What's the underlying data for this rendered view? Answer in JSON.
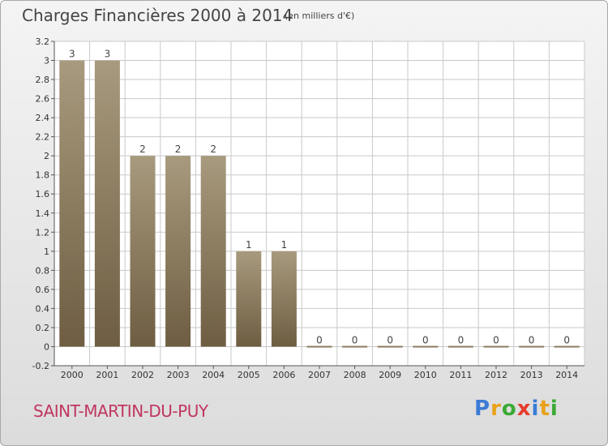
{
  "title": "Charges Financières 2000 à 2014",
  "subtitle": "(en milliers d'€)",
  "place": "SAINT-MARTIN-DU-PUY",
  "logo": {
    "text": "Proxiti",
    "letters": [
      {
        "ch": "P",
        "color": "#3a7bd5"
      },
      {
        "ch": "r",
        "color": "#e8a21a"
      },
      {
        "ch": "o",
        "color": "#3aaa35"
      },
      {
        "ch": "x",
        "color": "#e63c2e"
      },
      {
        "ch": "i",
        "color": "#3a7bd5"
      },
      {
        "ch": "t",
        "color": "#e8a21a"
      },
      {
        "ch": "i",
        "color": "#3aaa35"
      }
    ]
  },
  "colors": {
    "bar_top": "#a89a7e",
    "bar_bottom": "#6e5d42",
    "grid": "#c9c9c9",
    "axis": "#555555"
  },
  "chart_data": {
    "type": "bar",
    "categories": [
      "2000",
      "2001",
      "2002",
      "2003",
      "2004",
      "2005",
      "2006",
      "2007",
      "2008",
      "2009",
      "2010",
      "2011",
      "2012",
      "2013",
      "2014"
    ],
    "values": [
      3,
      3,
      2,
      2,
      2,
      1,
      1,
      0,
      0,
      0,
      0,
      0,
      0,
      0,
      0
    ],
    "data_labels": [
      "3",
      "3",
      "2",
      "2",
      "2",
      "1",
      "1",
      "0",
      "0",
      "0",
      "0",
      "0",
      "0",
      "0",
      "0"
    ],
    "ylim": [
      -0.2,
      3.2
    ],
    "yticks": [
      -0.2,
      0,
      0.2,
      0.4,
      0.6,
      0.8,
      1,
      1.2,
      1.4,
      1.6,
      1.8,
      2,
      2.2,
      2.4,
      2.6,
      2.8,
      3,
      3.2
    ],
    "ytick_labels": [
      "-0.2",
      "0",
      "0.2",
      "0.4",
      "0.6",
      "0.8",
      "1",
      "1.2",
      "1.4",
      "1.6",
      "1.8",
      "2",
      "2.2",
      "2.4",
      "2.6",
      "2.8",
      "3",
      "3.2"
    ],
    "grid": true,
    "xlabel": "",
    "ylabel": ""
  }
}
